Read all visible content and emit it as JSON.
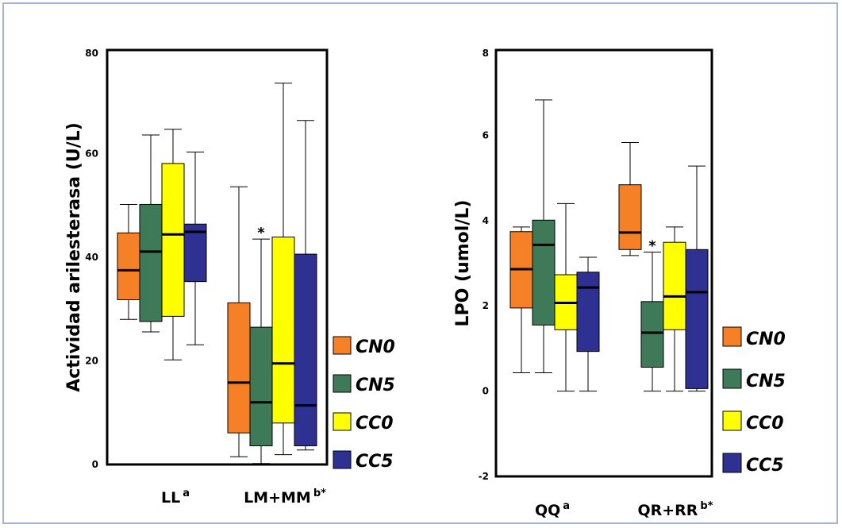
{
  "colors": {
    "CN0": "#f58025",
    "CN5": "#3e7a58",
    "CC0": "#ffff00",
    "CC5": "#2e3192",
    "frame": "#a6b3d9"
  },
  "chart_data": [
    {
      "type": "box",
      "ylabel": "Actividad arilesterasa (U/L)",
      "ylim": [
        0,
        80
      ],
      "yticks": [
        "0",
        "20",
        "40",
        "60",
        "80"
      ],
      "categories": [
        {
          "label": "LL",
          "sup": "a"
        },
        {
          "label": "LM+MM",
          "sup": "b*"
        }
      ],
      "legend": [
        "CN0",
        "CN5",
        "CC0",
        "CC5"
      ],
      "annotations": [
        {
          "text": "*",
          "category": 1,
          "series": 1
        }
      ],
      "series": [
        {
          "name": "CN0",
          "boxes": [
            {
              "min": 28,
              "q1": 31.8,
              "median": 37.5,
              "q3": 44.7,
              "max": 50.2
            },
            {
              "min": 1.5,
              "q1": 6.1,
              "median": 15.8,
              "q3": 31.2,
              "max": 53.6
            }
          ]
        },
        {
          "name": "CN5",
          "boxes": [
            {
              "min": 25.6,
              "q1": 27.6,
              "median": 41.1,
              "q3": 50.2,
              "max": 63.6
            },
            {
              "min": 0.2,
              "q1": 3.6,
              "median": 12,
              "q3": 26.5,
              "max": 43.5
            }
          ]
        },
        {
          "name": "CC0",
          "boxes": [
            {
              "min": 20.2,
              "q1": 28.6,
              "median": 44.4,
              "q3": 58.1,
              "max": 64.7
            },
            {
              "min": 1.9,
              "q1": 8,
              "median": 19.5,
              "q3": 43.9,
              "max": 73.6
            }
          ]
        },
        {
          "name": "CC5",
          "boxes": [
            {
              "min": 23.1,
              "q1": 35.3,
              "median": 44.9,
              "q3": 46.4,
              "max": 60.3
            },
            {
              "min": 2.8,
              "q1": 3.6,
              "median": 11.4,
              "q3": 40.6,
              "max": 66.4
            }
          ]
        }
      ]
    },
    {
      "type": "box",
      "ylabel": "LPO (umol/L)",
      "ylim": [
        -2,
        8
      ],
      "yticks": [
        "-2",
        "0",
        "2",
        "4",
        "6",
        "8"
      ],
      "categories": [
        {
          "label": "QQ",
          "sup": "a"
        },
        {
          "label": "QR+RR",
          "sup": "b*"
        }
      ],
      "legend": [
        "CN0",
        "CN5",
        "CC0",
        "CC5"
      ],
      "annotations": [
        {
          "text": "*",
          "category": 1,
          "series": 1
        }
      ],
      "series": [
        {
          "name": "CN0",
          "boxes": [
            {
              "min": 0.43,
              "q1": 1.95,
              "median": 2.86,
              "q3": 3.74,
              "max": 3.85
            },
            {
              "min": 3.18,
              "q1": 3.32,
              "median": 3.72,
              "q3": 4.84,
              "max": 5.83
            }
          ]
        },
        {
          "name": "CN5",
          "boxes": [
            {
              "min": 0.43,
              "q1": 1.55,
              "median": 3.43,
              "q3": 4.01,
              "max": 6.83
            },
            {
              "min": 0,
              "q1": 0.56,
              "median": 1.37,
              "q3": 2.1,
              "max": 3.26
            }
          ]
        },
        {
          "name": "CC0",
          "boxes": [
            {
              "min": 0,
              "q1": 1.44,
              "median": 2.07,
              "q3": 2.73,
              "max": 4.4
            },
            {
              "min": 0,
              "q1": 1.44,
              "median": 2.22,
              "q3": 3.49,
              "max": 3.85
            }
          ]
        },
        {
          "name": "CC5",
          "boxes": [
            {
              "min": 0,
              "q1": 0.93,
              "median": 2.43,
              "q3": 2.79,
              "max": 3.14
            },
            {
              "min": 0,
              "q1": 0.06,
              "median": 2.32,
              "q3": 3.32,
              "max": 5.28
            }
          ]
        }
      ]
    }
  ]
}
